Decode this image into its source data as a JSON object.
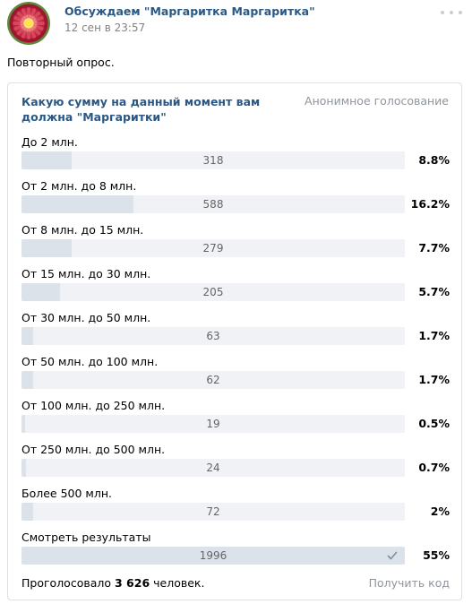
{
  "post": {
    "author": "Обсуждаем \"Маргаритка Маргаритка\"",
    "time": "12 сен в 23:57",
    "text": "Повторный опрос."
  },
  "poll": {
    "question": "Какую сумму на данный момент вам должна \"Маргаритки\"",
    "type": "Анонимное голосование",
    "options": [
      {
        "label": "До 2 млн.",
        "count": "318",
        "percent": "8.8%",
        "fill": 0.131
      },
      {
        "label": "От 2 млн. до 8 млн.",
        "count": "588",
        "percent": "16.2%",
        "fill": 0.291
      },
      {
        "label": "От 8 млн. до 15 млн.",
        "count": "279",
        "percent": "7.7%",
        "fill": 0.131
      },
      {
        "label": "От 15 млн. до 30 млн.",
        "count": "205",
        "percent": "5.7%",
        "fill": 0.101
      },
      {
        "label": "От 30 млн. до 50 млн.",
        "count": "63",
        "percent": "1.7%",
        "fill": 0.031
      },
      {
        "label": "От 50 млн. до 100 млн.",
        "count": "62",
        "percent": "1.7%",
        "fill": 0.031
      },
      {
        "label": "От 100 млн. до 250 млн.",
        "count": "19",
        "percent": "0.5%",
        "fill": 0.009
      },
      {
        "label": "От 250 млн. до 500 млн.",
        "count": "24",
        "percent": "0.7%",
        "fill": 0.012
      },
      {
        "label": "Более 500 млн.",
        "count": "72",
        "percent": "2%",
        "fill": 0.031
      },
      {
        "label": "Смотреть результаты",
        "count": "1996",
        "percent": "55%",
        "fill": 1.0,
        "selected": true
      }
    ],
    "voted_prefix": "Проголосовало ",
    "voted_count": "3 626",
    "voted_suffix": " человек.",
    "get_code": "Получить код"
  },
  "icons": {
    "more": "more-dots-icon",
    "check": "check-icon"
  },
  "colors": {
    "link": "#2a5885",
    "muted": "#828282",
    "bar_bg": "#f0f2f5",
    "bar_fill": "#dbe2ea"
  }
}
